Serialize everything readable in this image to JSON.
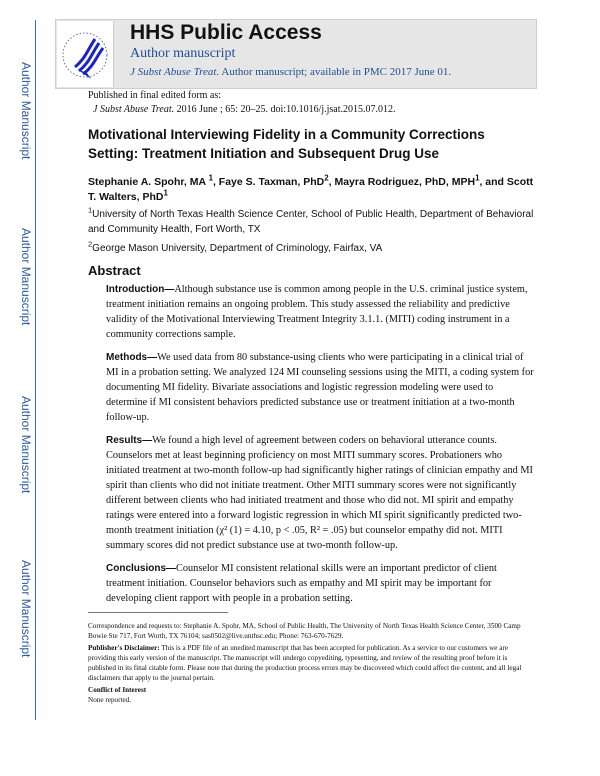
{
  "sidebar": {
    "label": "Author Manuscript"
  },
  "header": {
    "title": "HHS Public Access",
    "subtitle": "Author manuscript",
    "journal": "J Subst Abuse Treat.",
    "availability": "Author manuscript; available in PMC 2017 June 01.",
    "logo": "hhs-eagle-logo"
  },
  "published": {
    "label": "Published in final edited form as:",
    "journal": "J Subst Abuse Treat.",
    "citation": "2016 June ; 65: 20–25. doi:10.1016/j.jsat.2015.07.012."
  },
  "title": "Motivational Interviewing Fidelity in a Community Corrections Setting: Treatment Initiation and Subsequent Drug Use",
  "authors": [
    {
      "name": "Stephanie A. Spohr, MA",
      "sup": "1"
    },
    {
      "name": "Faye S. Taxman, PhD",
      "sup": "2"
    },
    {
      "name": "Mayra Rodriguez, PhD, MPH",
      "sup": "1"
    },
    {
      "name": "Scott T. Walters, PhD",
      "sup": "1"
    }
  ],
  "affiliations": [
    {
      "sup": "1",
      "text": "University of North Texas Health Science Center, School of Public Health, Department of Behavioral and Community Health, Fort Worth, TX"
    },
    {
      "sup": "2",
      "text": "George Mason University, Department of Criminology, Fairfax, VA"
    }
  ],
  "abstract": {
    "heading": "Abstract",
    "introduction": {
      "label": "Introduction—",
      "text": "Although substance use is common among people in the U.S. criminal justice system, treatment initiation remains an ongoing problem. This study assessed the reliability and predictive validity of the Motivational Interviewing Treatment Integrity 3.1.1. (MITI) coding instrument in a community corrections sample."
    },
    "methods": {
      "label": "Methods—",
      "text": "We used data from 80 substance-using clients who were participating in a clinical trial of MI in a probation setting. We analyzed 124 MI counseling sessions using the MITI, a coding system for documenting MI fidelity. Bivariate associations and logistic regression modeling were used to determine if MI consistent behaviors predicted substance use or treatment initiation at a two-month follow-up."
    },
    "results": {
      "label": "Results—",
      "text": "We found a high level of agreement between coders on behavioral utterance counts. Counselors met at least beginning proficiency on most MITI summary scores. Probationers who initiated treatment at two-month follow-up had significantly higher ratings of clinician empathy and MI spirit than clients who did not initiate treatment. Other MITI summary scores were not significantly different between clients who had initiated treatment and those who did not. MI spirit and empathy ratings were entered into a forward logistic regression in which MI spirit significantly predicted two-month treatment initiation (χ² (1) = 4.10, p < .05, R² = .05) but counselor empathy did not. MITI summary scores did not predict substance use at two-month follow-up."
    },
    "conclusions": {
      "label": "Conclusions—",
      "text": "Counselor MI consistent relational skills were an important predictor of client treatment initiation. Counselor behaviors such as empathy and MI spirit may be important for developing client rapport with people in a probation setting."
    }
  },
  "footnotes": {
    "correspondence": "Correspondence and requests to: Stephanie A. Spohr, MA, School of Public Health, The University of North Texas Health Science Center, 3500 Camp Bowie Ste 717, Fort Worth, TX 76104; sas0502@live.unthsc.edu; Phone: 763-670-7629.",
    "disclaimer_label": "Publisher's Disclaimer:",
    "disclaimer": "This is a PDF file of an unedited manuscript that has been accepted for publication. As a service to our customers we are providing this early version of the manuscript. The manuscript will undergo copyediting, typesetting, and review of the resulting proof before it is published in its final citable form. Please note that during the production process errors may be discovered which could affect the content, and all legal disclaimers that apply to the journal pertain.",
    "coi_label": "Conflict of Interest",
    "coi": "None reported."
  }
}
